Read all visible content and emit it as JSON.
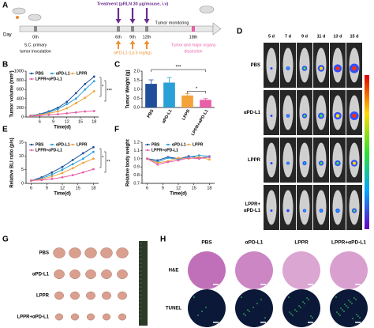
{
  "panel_labels": [
    "A",
    "B",
    "C",
    "D",
    "E",
    "F",
    "G",
    "H"
  ],
  "timeline": {
    "day_label": "Day",
    "days": [
      "0th",
      "6th",
      "9th",
      "12th",
      "18th"
    ],
    "treatment": "Treatment (pRLN 30 μg/mouse, i.v)",
    "inoculation": [
      "S.C. primary",
      "tumor inoculation"
    ],
    "antibody": "αPD-L1 (i.p.5 mg/kg)",
    "monitoring": "Tumor monitoring",
    "dissection": [
      "Tumor and major organs",
      "dissection"
    ]
  },
  "chart_data": [
    {
      "type": "line",
      "x": [
        4,
        6,
        8,
        10,
        12,
        14,
        16,
        18
      ],
      "xlim": [
        3,
        19
      ],
      "xticks": [
        6,
        9,
        12,
        15,
        18
      ],
      "ylim": [
        0,
        1000
      ],
      "yticks": [
        0,
        200,
        400,
        600,
        800,
        1000
      ],
      "xlabel": "Time(d)",
      "ylabel": "Tumor volume (mm³)",
      "legend": "upper left",
      "series": [
        {
          "name": "PBS",
          "color": "#1f4e9c",
          "values": [
            30,
            60,
            120,
            200,
            330,
            520,
            720,
            880
          ]
        },
        {
          "name": "αPD-L1",
          "color": "#2aa0d8",
          "values": [
            30,
            50,
            100,
            170,
            280,
            400,
            600,
            780
          ]
        },
        {
          "name": "LPPR",
          "color": "#f4a23a",
          "values": [
            25,
            45,
            80,
            120,
            190,
            300,
            420,
            560
          ]
        },
        {
          "name": "LPPR+αPD-L1",
          "color": "#e85fa8",
          "values": [
            20,
            30,
            45,
            60,
            80,
            100,
            120,
            130
          ]
        }
      ],
      "annotations": [
        "*",
        "***"
      ]
    },
    {
      "type": "bar",
      "categories": [
        "PBS",
        "αPD-L1",
        "LPPR",
        "LPPR+αPD-L1"
      ],
      "values": [
        1.3,
        1.37,
        0.66,
        0.42
      ],
      "errors": [
        0.22,
        0.28,
        0.1,
        0.07
      ],
      "colors": [
        "#1f4e9c",
        "#2aa0d8",
        "#f4a23a",
        "#e85fa8"
      ],
      "ylim": [
        0,
        2
      ],
      "yticks": [
        {
          "value": 0,
          "label": "0.0"
        },
        0.5,
        {
          "value": 1,
          "label": "1.0"
        },
        1.5,
        {
          "value": 2,
          "label": "2.0"
        }
      ],
      "ylabel": "Tumor Weight (g)",
      "annotations": [
        "***",
        "*"
      ]
    },
    {
      "type": "line",
      "x": [
        6,
        8,
        10,
        12,
        14,
        16,
        18
      ],
      "xlim": [
        5,
        19
      ],
      "xticks": [
        6,
        9,
        12,
        15,
        18
      ],
      "ylim": [
        0,
        15
      ],
      "yticks": [
        0,
        5,
        10,
        15
      ],
      "xlabel": "Time(d)",
      "ylabel": "Relative BLI ratio (p/s)",
      "legend": "upper left",
      "series": [
        {
          "name": "PBS",
          "color": "#1f4e9c",
          "values": [
            1,
            2.2,
            4,
            6,
            8.5,
            11,
            13.2
          ]
        },
        {
          "name": "αPD-L1",
          "color": "#2aa0d8",
          "values": [
            1,
            1.8,
            3.2,
            5,
            7,
            9,
            11.5
          ]
        },
        {
          "name": "LPPR",
          "color": "#f4a23a",
          "values": [
            1,
            1.5,
            2.5,
            3.8,
            5.5,
            7.5,
            9
          ]
        },
        {
          "name": "LPPR+αPD-L1",
          "color": "#e85fa8",
          "values": [
            1,
            1.2,
            1.6,
            2.2,
            3,
            4,
            5.2
          ]
        }
      ],
      "annotations": [
        "*",
        "**"
      ]
    },
    {
      "type": "line",
      "x": [
        6,
        8,
        10,
        12,
        14,
        16,
        18
      ],
      "xlim": [
        5,
        19
      ],
      "xticks": [
        6,
        9,
        12,
        15,
        18
      ],
      "ylim": [
        0.7,
        1.2
      ],
      "yticks": [
        0.7,
        0.8,
        0.9,
        {
          "value": 1,
          "label": "1.0"
        },
        1.1,
        1.2
      ],
      "xlabel": "Time(d)",
      "ylabel": "Relative body weight",
      "legend": "upper left",
      "series": [
        {
          "name": "PBS",
          "color": "#1f4e9c",
          "values": [
            1,
            0.98,
            1.02,
            1,
            1.03,
            1.01,
            1.02
          ]
        },
        {
          "name": "αPD-L1",
          "color": "#2aa0d8",
          "values": [
            1,
            0.96,
            1.01,
            0.99,
            1.02,
            1.04,
            1.03
          ]
        },
        {
          "name": "LPPR",
          "color": "#f4a23a",
          "values": [
            1,
            0.95,
            0.97,
            1.01,
            1,
            1.02,
            0.99
          ]
        },
        {
          "name": "LPPR+αPD-L1",
          "color": "#e85fa8",
          "values": [
            1,
            0.93,
            0.96,
            0.98,
            1.01,
            1,
            1.02
          ]
        }
      ]
    }
  ],
  "imaging": {
    "columns": [
      "5 d",
      "7 d",
      "9 d",
      "11 d",
      "13 d",
      "15 d"
    ],
    "rows": [
      "PBS",
      "αPD-L1",
      "LPPR",
      [
        "LPPR+",
        "αPD-L1"
      ]
    ]
  },
  "tumor_photos": {
    "rows": [
      "PBS",
      "αPD-L1",
      "LPPR",
      "LPPR+αPD-L1"
    ]
  },
  "histology": {
    "columns": [
      "PBS",
      "αPD-L1",
      "LPPR",
      "LPPR+αPD-L1"
    ],
    "rows": [
      "H&E",
      "TUNEL"
    ]
  }
}
